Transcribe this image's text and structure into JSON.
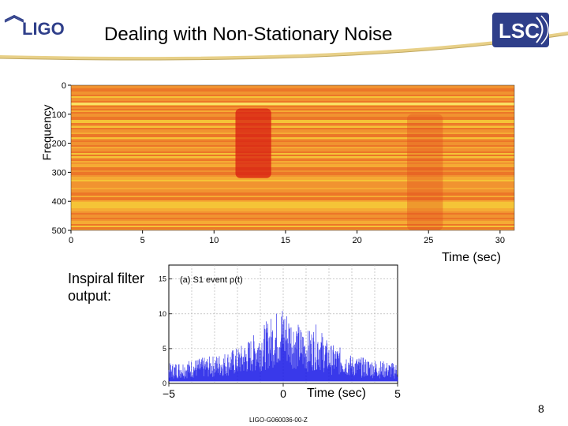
{
  "slide": {
    "title": "Dealing with Non-Stationary Noise",
    "page_number": "8",
    "doc_id": "LIGO-G060036-00-Z"
  },
  "logos": {
    "left_text": "LIGO",
    "right_text": "LSC"
  },
  "colors": {
    "header_blue": "#2f3f8a",
    "band_gold": "#f2df9a",
    "spectro_low": "#f7e63a",
    "spectro_high": "#d21a1a",
    "filter_blue": "#1414e6"
  },
  "chart_data": [
    {
      "type": "heatmap",
      "title": "",
      "xlabel": "Time (sec)",
      "ylabel": "Frequency",
      "xlim": [
        0,
        31
      ],
      "ylim": [
        0,
        500
      ],
      "x_ticks": [
        "0",
        "5",
        "10",
        "15",
        "20",
        "25",
        "30"
      ],
      "y_ticks": [
        "0",
        "100",
        "200",
        "300",
        "400",
        "500"
      ],
      "high_power_regions": [
        {
          "t_start": 11.5,
          "t_end": 14.0,
          "f_start": 80,
          "f_end": 320,
          "level": "high"
        },
        {
          "t_start": 23.5,
          "t_end": 26.0,
          "f_start": 100,
          "f_end": 500,
          "level": "medium"
        }
      ]
    },
    {
      "type": "line",
      "title": "(a) S1 event ρ(t)",
      "xlabel": "Time (sec)",
      "ylabel": "",
      "xlim": [
        -5,
        5
      ],
      "ylim": [
        0,
        17
      ],
      "x_ticks": [
        "−5",
        "0",
        "5"
      ],
      "y_ticks": [
        "0",
        "5",
        "10",
        "15"
      ],
      "series": [
        {
          "name": "filter output",
          "x": [
            -5,
            -4,
            -3,
            -2,
            -1.5,
            -1,
            -0.5,
            0,
            0.5,
            1,
            1.5,
            2,
            2.5,
            3,
            4,
            5
          ],
          "y": [
            2.5,
            3.0,
            3.5,
            4.5,
            5.5,
            7.0,
            8.5,
            10.0,
            8.0,
            6.5,
            7.5,
            5.0,
            4.5,
            3.5,
            3.0,
            2.5
          ]
        }
      ]
    }
  ],
  "labels": {
    "time_top": "Time (sec)",
    "inspiral": "Inspiral filter output:",
    "time_bottom": "Time (sec)"
  }
}
